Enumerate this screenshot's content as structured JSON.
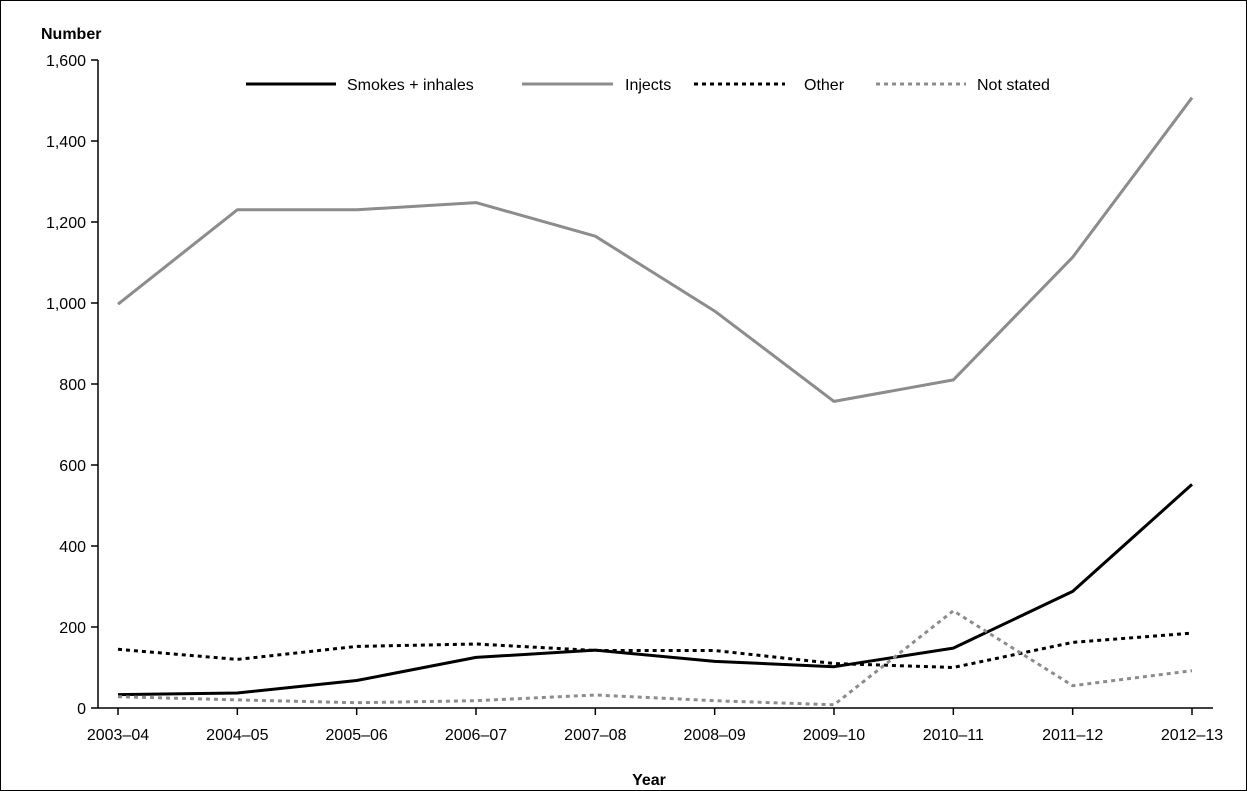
{
  "chart_data": {
    "type": "line",
    "ylabel": "Number",
    "xlabel": "Year",
    "categories": [
      "2003–04",
      "2004–05",
      "2005–06",
      "2006–07",
      "2007–08",
      "2008–09",
      "2009–10",
      "2010–11",
      "2011–12",
      "2012–13"
    ],
    "y_ticks": [
      "0",
      "200",
      "400",
      "600",
      "800",
      "1,000",
      "1,200",
      "1,400",
      "1,600"
    ],
    "ylim": [
      0,
      1600
    ],
    "grid": false,
    "legend_position": "top",
    "series": [
      {
        "name": "Smokes + inhales",
        "color": "#000000",
        "style": "solid",
        "values": [
          33,
          37,
          68,
          125,
          143,
          115,
          102,
          148,
          288,
          552
        ]
      },
      {
        "name": "Injects",
        "color": "#8c8c8c",
        "style": "solid",
        "values": [
          997,
          1230,
          1230,
          1248,
          1165,
          980,
          757,
          810,
          1113,
          1507
        ]
      },
      {
        "name": "Other",
        "color": "#000000",
        "style": "dotted",
        "values": [
          145,
          120,
          152,
          158,
          142,
          142,
          110,
          100,
          162,
          185
        ]
      },
      {
        "name": "Not stated",
        "color": "#8c8c8c",
        "style": "dotted",
        "values": [
          28,
          20,
          13,
          18,
          32,
          18,
          8,
          240,
          55,
          92
        ]
      }
    ]
  }
}
